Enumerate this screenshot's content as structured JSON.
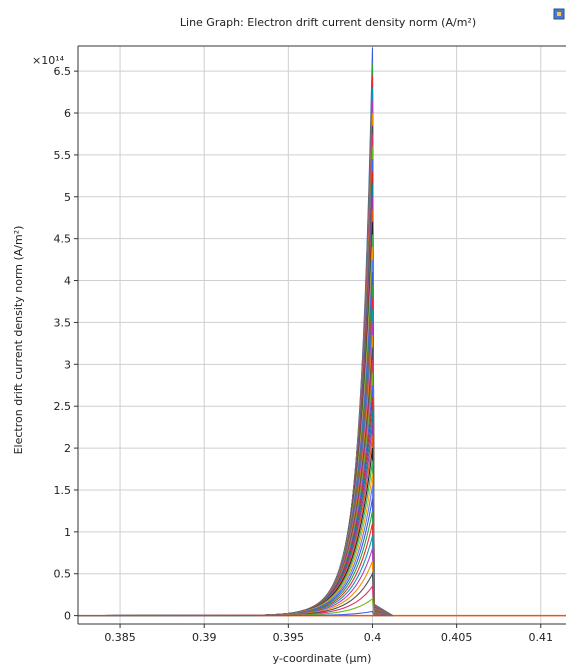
{
  "chart_data": {
    "type": "line",
    "title": "Line Graph: Electron drift current density norm (A/m²)",
    "xlabel": "y-coordinate (µm)",
    "ylabel": "Electron drift current density norm (A/m²)",
    "y_multiplier": "×10¹⁴",
    "xlim": [
      0.3825,
      0.4115
    ],
    "ylim": [
      -0.1,
      6.8
    ],
    "x_ticks": [
      0.385,
      0.39,
      0.395,
      0.4,
      0.405,
      0.41
    ],
    "x_tick_labels": [
      "0.385",
      "0.39",
      "0.395",
      "0.4",
      "0.405",
      "0.41"
    ],
    "y_ticks": [
      0,
      0.5,
      1,
      1.5,
      2,
      2.5,
      3,
      3.5,
      4,
      4.5,
      5,
      5.5,
      6,
      6.5
    ],
    "y_tick_labels": [
      "0",
      "0.5",
      "1",
      "1.5",
      "2",
      "2.5",
      "3",
      "3.5",
      "4",
      "4.5",
      "5",
      "5.5",
      "6",
      "6.5"
    ],
    "grid": true,
    "legend": "none",
    "peak_x": 0.4,
    "series_peaks": [
      6.78,
      6.6,
      6.45,
      6.3,
      6.15,
      6.0,
      5.85,
      5.75,
      5.6,
      5.45,
      5.3,
      5.15,
      5.0,
      4.85,
      4.7,
      4.55,
      4.4,
      4.25,
      4.1,
      3.95,
      3.8,
      3.65,
      3.5,
      3.35,
      3.2,
      3.05,
      2.9,
      2.75,
      2.6,
      2.45,
      2.3,
      2.15,
      2.0,
      1.85,
      1.7,
      1.55,
      1.4,
      1.25,
      1.1,
      0.95,
      0.8,
      0.65,
      0.5,
      0.35,
      0.2,
      0.05
    ],
    "series_colors": [
      "#3b5bdb",
      "#2f9e44",
      "#e03131",
      "#1098ad",
      "#ae3ec9",
      "#f08c00",
      "#495057",
      "#d6336c",
      "#74b816",
      "#4263eb",
      "#c92a2a",
      "#0c8599",
      "#9c36b5",
      "#e8590c",
      "#212529",
      "#37b24d",
      "#f59f00",
      "#5c7cfa"
    ],
    "baseline_color": "#e8590c"
  },
  "header": {
    "icon": "plot-window-icon"
  }
}
